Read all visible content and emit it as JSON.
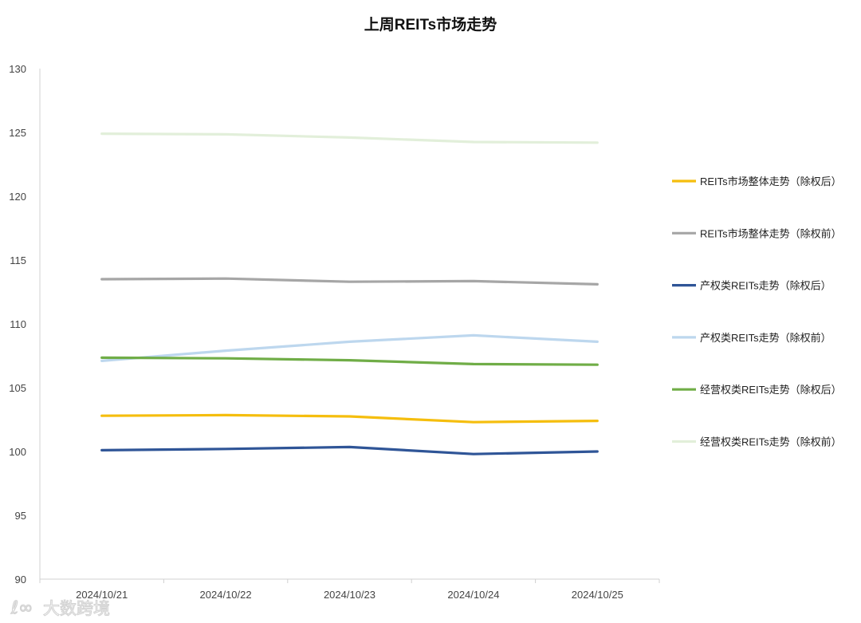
{
  "chart_data": {
    "type": "line",
    "title": "上周REITs市场走势",
    "xlabel": "",
    "ylabel": "",
    "x": [
      "2024/10/21",
      "2024/10/22",
      "2024/10/23",
      "2024/10/24",
      "2024/10/25"
    ],
    "ylim": [
      90,
      130
    ],
    "yticks": [
      90,
      95,
      100,
      105,
      110,
      115,
      120,
      125,
      130
    ],
    "grid": false,
    "legend_position": "right",
    "series": [
      {
        "name": "REITs市场整体走势（除权后）",
        "color": "#F5BE0E",
        "values": [
          102.8,
          102.85,
          102.75,
          102.3,
          102.4
        ]
      },
      {
        "name": "REITs市场整体走势（除权前）",
        "color": "#A6A6A6",
        "values": [
          113.5,
          113.55,
          113.3,
          113.35,
          113.1
        ]
      },
      {
        "name": "产权类REITs走势（除权后）",
        "color": "#2F5597",
        "values": [
          100.1,
          100.2,
          100.35,
          99.8,
          100.0
        ]
      },
      {
        "name": "产权类REITs走势（除权前）",
        "color": "#BDD7EE",
        "values": [
          107.1,
          107.9,
          108.6,
          109.1,
          108.6
        ]
      },
      {
        "name": "经营权类REITs走势（除权后）",
        "color": "#70AD47",
        "values": [
          107.35,
          107.3,
          107.15,
          106.85,
          106.8
        ]
      },
      {
        "name": "经营权类REITs走势（除权前）",
        "color": "#E2EFDA",
        "values": [
          124.9,
          124.85,
          124.6,
          124.25,
          124.2
        ]
      }
    ]
  },
  "watermark": {
    "text": "大数跨境"
  }
}
